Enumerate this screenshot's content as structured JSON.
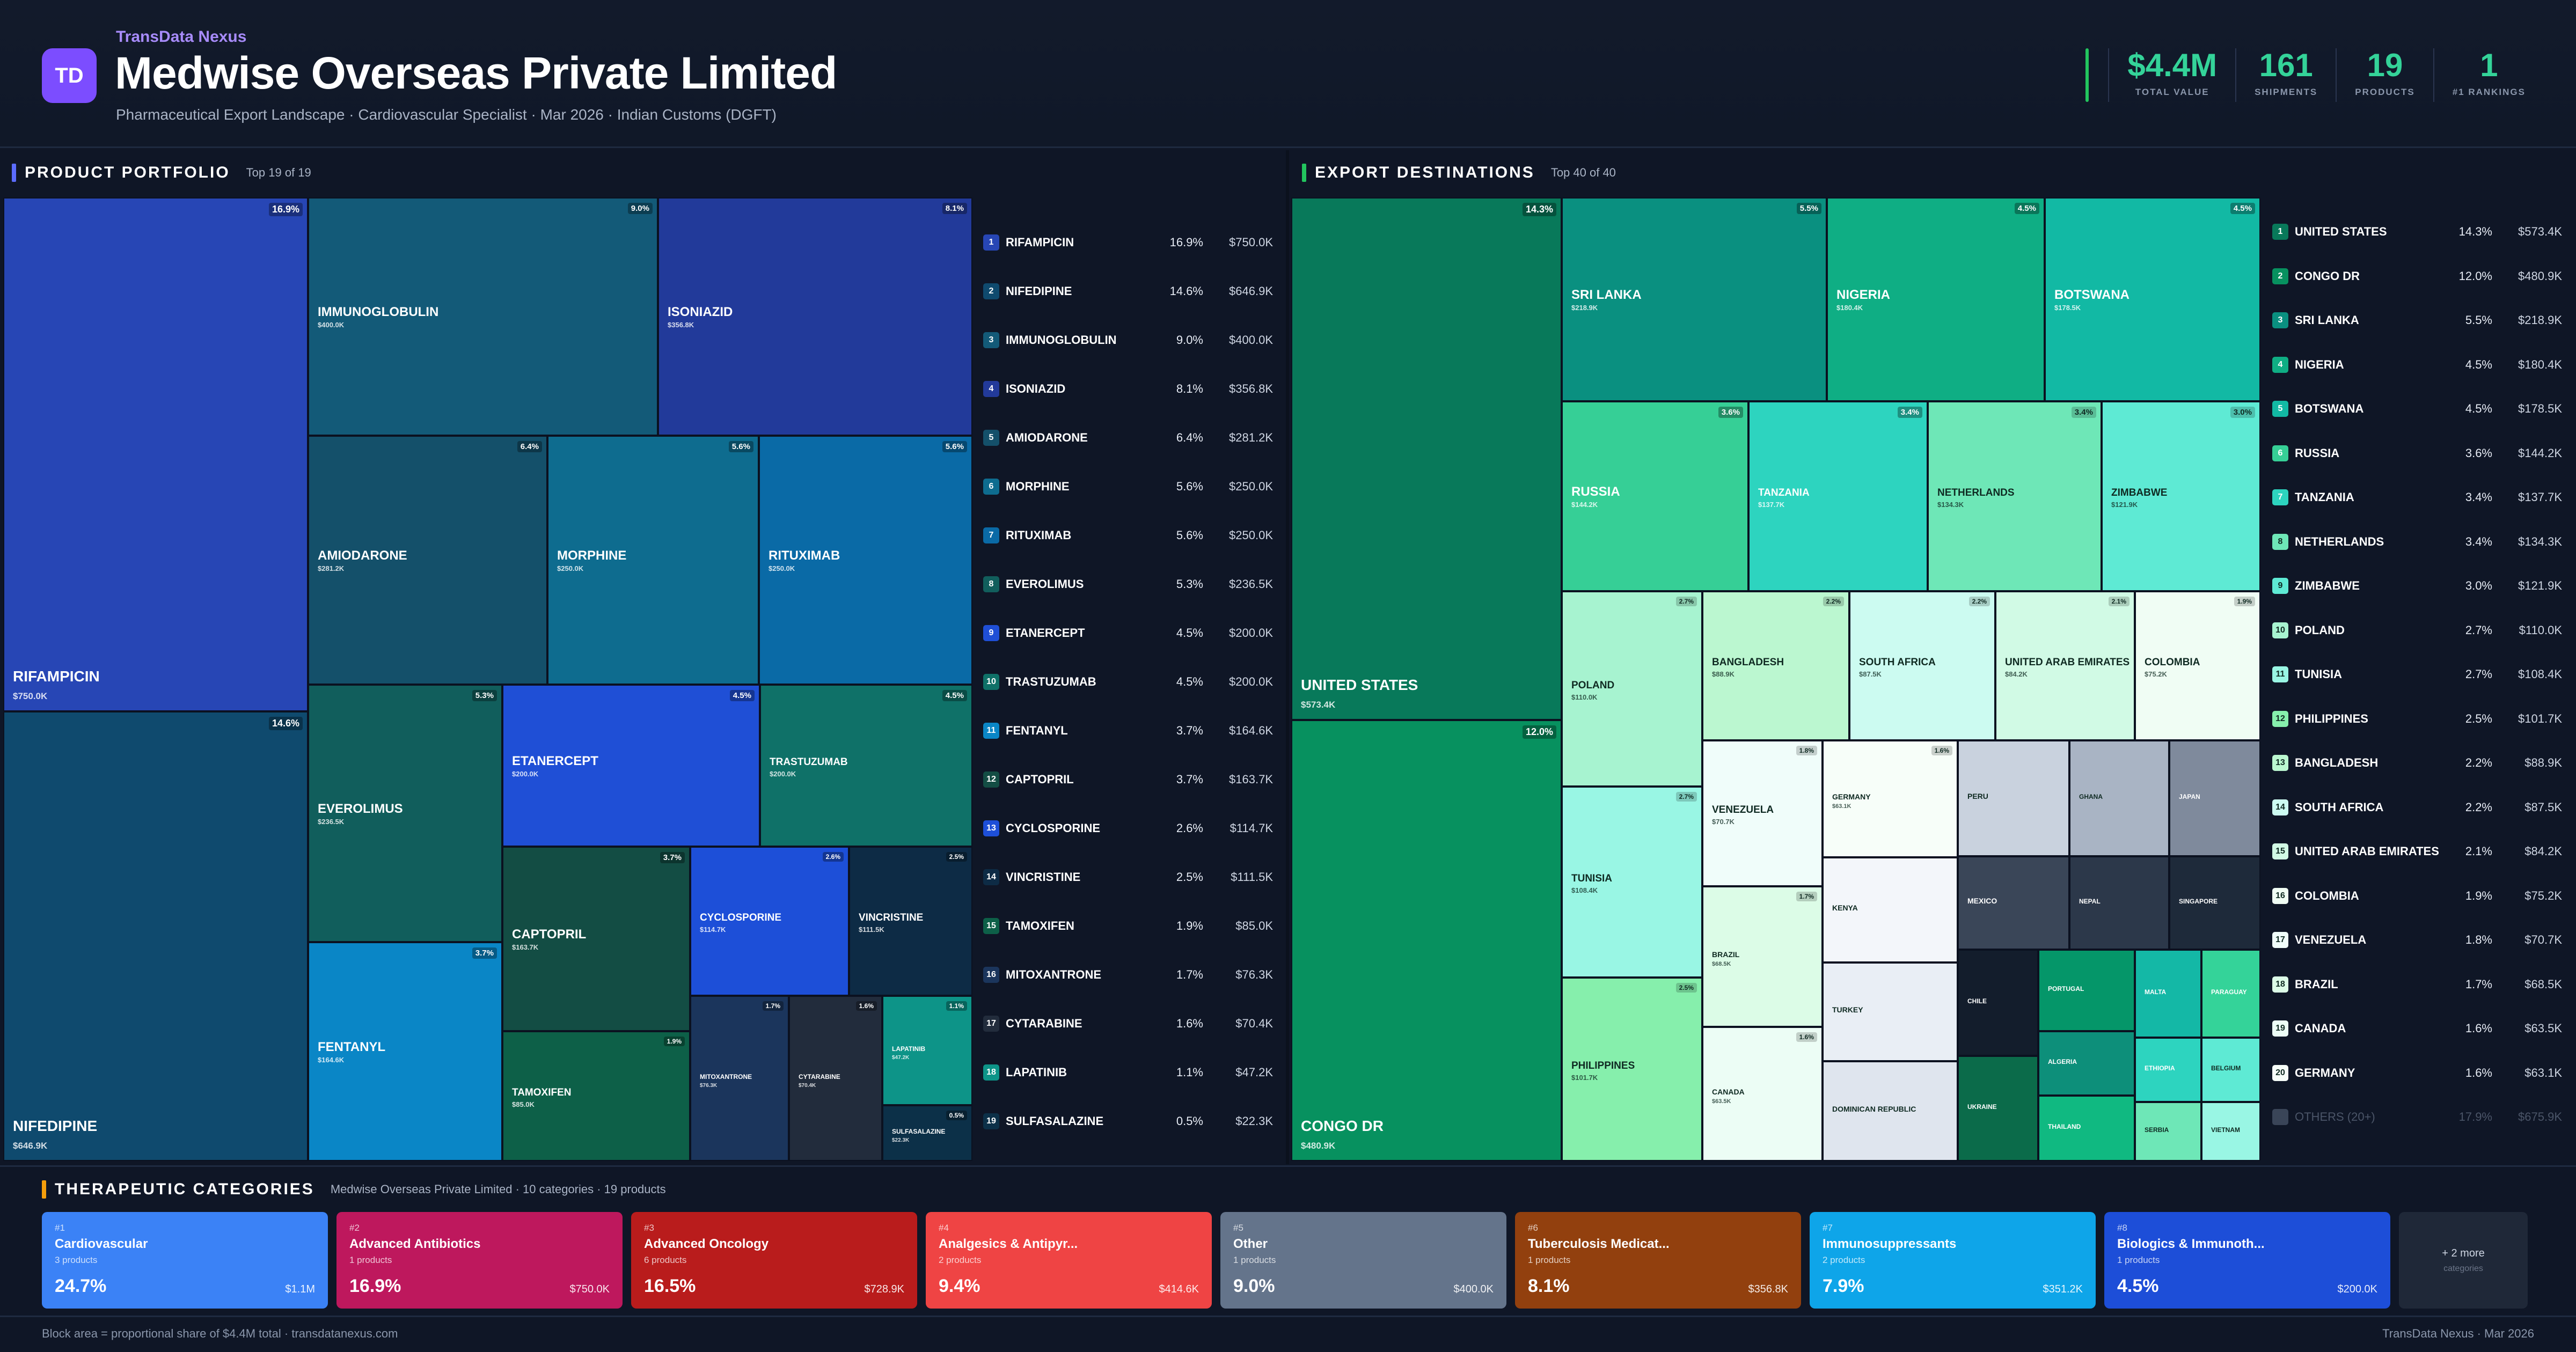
{
  "header": {
    "logo_text": "TD",
    "brand": "TransData Nexus",
    "title": "Medwise Overseas Private Limited",
    "subtitle": "Pharmaceutical Export Landscape · Cardiovascular Specialist · Mar 2026 · Indian Customs (DGFT)",
    "kpis": [
      {
        "value": "$4.4M",
        "label": "TOTAL VALUE"
      },
      {
        "value": "161",
        "label": "SHIPMENTS"
      },
      {
        "value": "19",
        "label": "PRODUCTS"
      },
      {
        "value": "1",
        "label": "#1 RANKINGS"
      }
    ],
    "accent_color": "#34d399"
  },
  "portfolio": {
    "title": "PRODUCT PORTFOLIO",
    "count": "Top 19 of 19",
    "bar_color": "#5b6cff"
  },
  "destinations": {
    "title": "EXPORT DESTINATIONS",
    "count": "Top 40 of 40",
    "bar_color": "#22c55e",
    "others": {
      "name": "OTHERS (20+)",
      "pct": "17.9%",
      "value": "$675.9K"
    }
  },
  "chart_data": [
    {
      "type": "treemap",
      "title": "PRODUCT PORTFOLIO",
      "items": [
        {
          "rank": 1,
          "name": "RIFAMPICIN",
          "pct": "16.9%",
          "value": "$750.0K",
          "color": "#2746b5"
        },
        {
          "rank": 2,
          "name": "NIFEDIPINE",
          "pct": "14.6%",
          "value": "$646.9K",
          "color": "#0f4a6e"
        },
        {
          "rank": 3,
          "name": "IMMUNOGLOBULIN",
          "pct": "9.0%",
          "value": "$400.0K",
          "color": "#135a78"
        },
        {
          "rank": 4,
          "name": "ISONIAZID",
          "pct": "8.1%",
          "value": "$356.8K",
          "color": "#223a9a"
        },
        {
          "rank": 5,
          "name": "AMIODARONE",
          "pct": "6.4%",
          "value": "$281.2K",
          "color": "#14506a"
        },
        {
          "rank": 6,
          "name": "MORPHINE",
          "pct": "5.6%",
          "value": "$250.0K",
          "color": "#0e6c8f"
        },
        {
          "rank": 7,
          "name": "RITUXIMAB",
          "pct": "5.6%",
          "value": "$250.0K",
          "color": "#0a6aa6"
        },
        {
          "rank": 8,
          "name": "EVEROLIMUS",
          "pct": "5.3%",
          "value": "$236.5K",
          "color": "#115e5c"
        },
        {
          "rank": 9,
          "name": "ETANERCEPT",
          "pct": "4.5%",
          "value": "$200.0K",
          "color": "#1f4fd6"
        },
        {
          "rank": 10,
          "name": "TRASTUZUMAB",
          "pct": "4.5%",
          "value": "$200.0K",
          "color": "#0f7168"
        },
        {
          "rank": 11,
          "name": "FENTANYL",
          "pct": "3.7%",
          "value": "$164.6K",
          "color": "#0a86c6"
        },
        {
          "rank": 12,
          "name": "CAPTOPRIL",
          "pct": "3.7%",
          "value": "$163.7K",
          "color": "#134d44"
        },
        {
          "rank": 13,
          "name": "CYCLOSPORINE",
          "pct": "2.6%",
          "value": "$114.7K",
          "color": "#1d4fd8"
        },
        {
          "rank": 14,
          "name": "VINCRISTINE",
          "pct": "2.5%",
          "value": "$111.5K",
          "color": "#0d2b45"
        },
        {
          "rank": 15,
          "name": "TAMOXIFEN",
          "pct": "1.9%",
          "value": "$85.0K",
          "color": "#0d6048"
        },
        {
          "rank": 16,
          "name": "MITOXANTRONE",
          "pct": "1.7%",
          "value": "$76.3K",
          "color": "#1b355c"
        },
        {
          "rank": 17,
          "name": "CYTARABINE",
          "pct": "1.6%",
          "value": "$70.4K",
          "color": "#222c3c"
        },
        {
          "rank": 18,
          "name": "LAPATINIB",
          "pct": "1.1%",
          "value": "$47.2K",
          "color": "#0d9488"
        },
        {
          "rank": 19,
          "name": "SULFASALAZINE",
          "pct": "0.5%",
          "value": "$22.3K",
          "color": "#0c3048"
        }
      ]
    },
    {
      "type": "treemap",
      "title": "EXPORT DESTINATIONS",
      "items": [
        {
          "rank": 1,
          "name": "UNITED STATES",
          "pct": "14.3%",
          "value": "$573.4K",
          "color": "#08795a"
        },
        {
          "rank": 2,
          "name": "CONGO DR",
          "pct": "12.0%",
          "value": "$480.9K",
          "color": "#07915f"
        },
        {
          "rank": 3,
          "name": "SRI LANKA",
          "pct": "5.5%",
          "value": "$218.9K",
          "color": "#0a9080"
        },
        {
          "rank": 4,
          "name": "NIGERIA",
          "pct": "4.5%",
          "value": "$180.4K",
          "color": "#0fae84"
        },
        {
          "rank": 5,
          "name": "BOTSWANA",
          "pct": "4.5%",
          "value": "$178.5K",
          "color": "#12b9a4"
        },
        {
          "rank": 6,
          "name": "RUSSIA",
          "pct": "3.6%",
          "value": "$144.2K",
          "color": "#36cf96"
        },
        {
          "rank": 7,
          "name": "TANZANIA",
          "pct": "3.4%",
          "value": "$137.7K",
          "color": "#2dd4bf"
        },
        {
          "rank": 8,
          "name": "NETHERLANDS",
          "pct": "3.4%",
          "value": "$134.3K",
          "color": "#6ee7b7"
        },
        {
          "rank": 9,
          "name": "ZIMBABWE",
          "pct": "3.0%",
          "value": "$121.9K",
          "color": "#5eead4"
        },
        {
          "rank": 10,
          "name": "POLAND",
          "pct": "2.7%",
          "value": "$110.0K",
          "color": "#a7f3d0"
        },
        {
          "rank": 11,
          "name": "TUNISIA",
          "pct": "2.7%",
          "value": "$108.4K",
          "color": "#99f6e4"
        },
        {
          "rank": 12,
          "name": "PHILIPPINES",
          "pct": "2.5%",
          "value": "$101.7K",
          "color": "#86efac"
        },
        {
          "rank": 13,
          "name": "BANGLADESH",
          "pct": "2.2%",
          "value": "$88.9K",
          "color": "#bbf7d0"
        },
        {
          "rank": 14,
          "name": "SOUTH AFRICA",
          "pct": "2.2%",
          "value": "$87.5K",
          "color": "#ccfbf1"
        },
        {
          "rank": 15,
          "name": "UNITED ARAB EMIRATES",
          "pct": "2.1%",
          "value": "$84.2K",
          "color": "#d1fae5"
        },
        {
          "rank": 16,
          "name": "COLOMBIA",
          "pct": "1.9%",
          "value": "$75.2K",
          "color": "#f0fdf4"
        },
        {
          "rank": 17,
          "name": "VENEZUELA",
          "pct": "1.8%",
          "value": "$70.7K",
          "color": "#f0fdfa"
        },
        {
          "rank": 18,
          "name": "BRAZIL",
          "pct": "1.7%",
          "value": "$68.5K",
          "color": "#dcfce7"
        },
        {
          "rank": 19,
          "name": "CANADA",
          "pct": "1.6%",
          "value": "$63.5K",
          "color": "#ecfdf5"
        },
        {
          "rank": 20,
          "name": "GERMANY",
          "pct": "1.6%",
          "value": "$63.1K",
          "color": "#f7fef9"
        },
        {
          "name": "KENYA",
          "color": "#f3f6fa"
        },
        {
          "name": "TURKEY",
          "color": "#e9eef5"
        },
        {
          "name": "DOMINICAN REPUBLIC",
          "color": "#dfe5ee"
        },
        {
          "name": "PERU",
          "color": "#c9d2de"
        },
        {
          "name": "GHANA",
          "color": "#a9b4c4"
        },
        {
          "name": "JAPAN",
          "color": "#7f8a9c"
        },
        {
          "name": "MEXICO",
          "color": "#3a4658"
        },
        {
          "name": "NEPAL",
          "color": "#2c384a"
        },
        {
          "name": "SINGAPORE",
          "color": "#1e2a3a"
        },
        {
          "name": "CHILE",
          "color": "#131d2c"
        },
        {
          "name": "UKRAINE",
          "color": "#0b6b4a"
        },
        {
          "name": "PORTUGAL",
          "color": "#059669"
        },
        {
          "name": "ALGERIA",
          "color": "#0d8f7a"
        },
        {
          "name": "THAILAND",
          "color": "#10b981"
        },
        {
          "name": "MALTA",
          "color": "#14b8a6"
        },
        {
          "name": "PARAGUAY",
          "color": "#34d399"
        },
        {
          "name": "ETHIOPIA",
          "color": "#2dd4bf"
        },
        {
          "name": "BELGIUM",
          "color": "#5eead4"
        },
        {
          "name": "SERBIA",
          "color": "#6ee7b7"
        },
        {
          "name": "VIETNAM",
          "color": "#99f6e4"
        }
      ]
    }
  ],
  "categories": {
    "title": "THERAPEUTIC CATEGORIES",
    "subtitle": "Medwise Overseas Private Limited · 10 categories · 19 products",
    "bar_color": "#f59e0b",
    "items": [
      {
        "rank": "#1",
        "name": "Cardiovascular",
        "products": "3 products",
        "pct": "24.7%",
        "value": "$1.1M",
        "color": "#3b82f6"
      },
      {
        "rank": "#2",
        "name": "Advanced Antibiotics",
        "products": "1 products",
        "pct": "16.9%",
        "value": "$750.0K",
        "color": "#be185d"
      },
      {
        "rank": "#3",
        "name": "Advanced Oncology",
        "products": "6 products",
        "pct": "16.5%",
        "value": "$728.9K",
        "color": "#b91c1c"
      },
      {
        "rank": "#4",
        "name": "Analgesics & Antipyr...",
        "products": "2 products",
        "pct": "9.4%",
        "value": "$414.6K",
        "color": "#ef4444"
      },
      {
        "rank": "#5",
        "name": "Other",
        "products": "1 products",
        "pct": "9.0%",
        "value": "$400.0K",
        "color": "#64748b"
      },
      {
        "rank": "#6",
        "name": "Tuberculosis Medicat...",
        "products": "1 products",
        "pct": "8.1%",
        "value": "$356.8K",
        "color": "#92400e"
      },
      {
        "rank": "#7",
        "name": "Immunosuppressants",
        "products": "2 products",
        "pct": "7.9%",
        "value": "$351.2K",
        "color": "#0ea5e9"
      },
      {
        "rank": "#8",
        "name": "Biologics & Immunoth...",
        "products": "1 products",
        "pct": "4.5%",
        "value": "$200.0K",
        "color": "#1d4ed8"
      }
    ],
    "more_label": "+ 2 more",
    "more_sub": "categories"
  },
  "footer": {
    "left": "Block area = proportional share of $4.4M total · transdatanexus.com",
    "right": "TransData Nexus · Mar 2026"
  }
}
